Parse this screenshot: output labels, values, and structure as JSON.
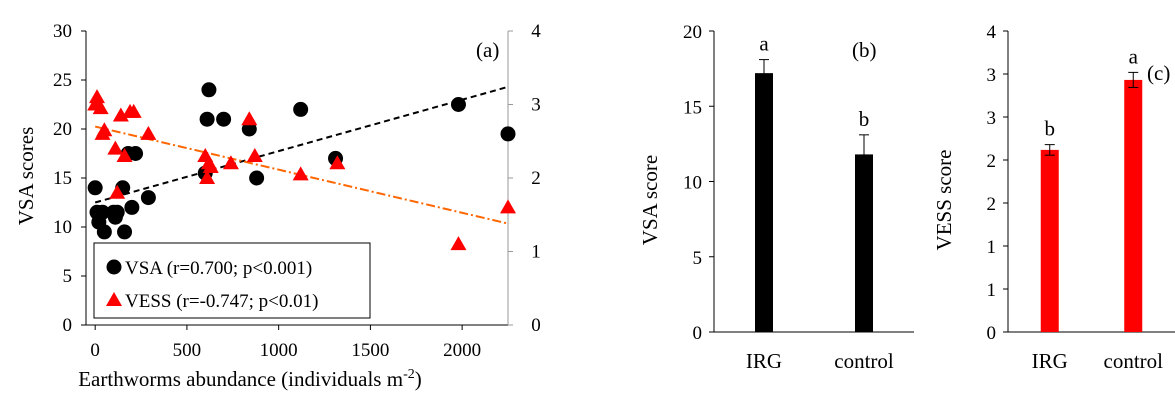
{
  "chart_data": [
    {
      "type": "scatter",
      "panel_label": "(a)",
      "xlabel": "Earthworms abundance (individuals m",
      "xlabel_sup": "-2",
      "xlabel_end": ")",
      "ylabel": "VSA scores",
      "xlim": [
        -50,
        2250
      ],
      "ylim": [
        0,
        30
      ],
      "y2lim": [
        0,
        4
      ],
      "xticks": [
        "0",
        "500",
        "1000",
        "1500",
        "2000"
      ],
      "yticks": [
        "0",
        "5",
        "10",
        "15",
        "20",
        "25",
        "30"
      ],
      "y2ticks": [
        "0",
        "1",
        "2",
        "3",
        "4"
      ],
      "grid": false,
      "legend_position": "bottom-left",
      "series": [
        {
          "name": "VSA (r=0.700; p<0.001)",
          "axis": "left",
          "marker": "circle",
          "color": "#000000",
          "x": [
            0,
            10,
            20,
            40,
            50,
            100,
            110,
            120,
            150,
            160,
            180,
            200,
            220,
            290,
            600,
            610,
            620,
            700,
            840,
            880,
            1120,
            1310,
            1980,
            2250
          ],
          "y": [
            14,
            11.5,
            10.5,
            11.5,
            9.5,
            11.5,
            11,
            11.5,
            14,
            9.5,
            17.5,
            12,
            17.5,
            13,
            15.5,
            21,
            24,
            21,
            20,
            15,
            22,
            17,
            22.5,
            19.5
          ],
          "trend": {
            "x": [
              0,
              2250
            ],
            "y": [
              12.5,
              24.3
            ],
            "color": "#000000",
            "dash": "dashed"
          }
        },
        {
          "name": "VESS (r=-0.747; p<0.01)",
          "axis": "right",
          "marker": "triangle",
          "color": "#ff0000",
          "x": [
            0,
            10,
            30,
            40,
            50,
            110,
            120,
            140,
            160,
            190,
            210,
            290,
            600,
            610,
            620,
            630,
            740,
            840,
            870,
            1120,
            1320,
            1980,
            2250
          ],
          "y": [
            3.0,
            3.1,
            2.95,
            2.6,
            2.65,
            2.4,
            1.8,
            2.85,
            2.3,
            2.9,
            2.9,
            2.6,
            2.3,
            2.0,
            2.2,
            2.15,
            2.2,
            2.8,
            2.3,
            2.05,
            2.2,
            1.1,
            1.6
          ],
          "trend": {
            "x": [
              0,
              2250
            ],
            "y": [
              2.7,
              1.38
            ],
            "color": "#ff6600",
            "dash": "dashdot"
          }
        }
      ]
    },
    {
      "type": "bar",
      "panel_label": "(b)",
      "ylabel": "VSA score",
      "categories": [
        "IRG",
        "control"
      ],
      "values": [
        17.2,
        11.8
      ],
      "errors": [
        0.9,
        1.3
      ],
      "letters": [
        "a",
        "b"
      ],
      "ylim": [
        0,
        20
      ],
      "yticks": [
        "0",
        "5",
        "10",
        "15",
        "20"
      ],
      "color": "#000000"
    },
    {
      "type": "bar",
      "panel_label": "(c)",
      "ylabel": "VESS score",
      "categories": [
        "IRG",
        "control"
      ],
      "values": [
        2.42,
        3.35
      ],
      "errors": [
        0.07,
        0.1
      ],
      "letters": [
        "b",
        "a"
      ],
      "ylim": [
        0,
        4
      ],
      "yticks": [
        "0",
        "1",
        "1",
        "2",
        "2",
        "3",
        "3",
        "4"
      ],
      "color": "#ff0000"
    }
  ]
}
